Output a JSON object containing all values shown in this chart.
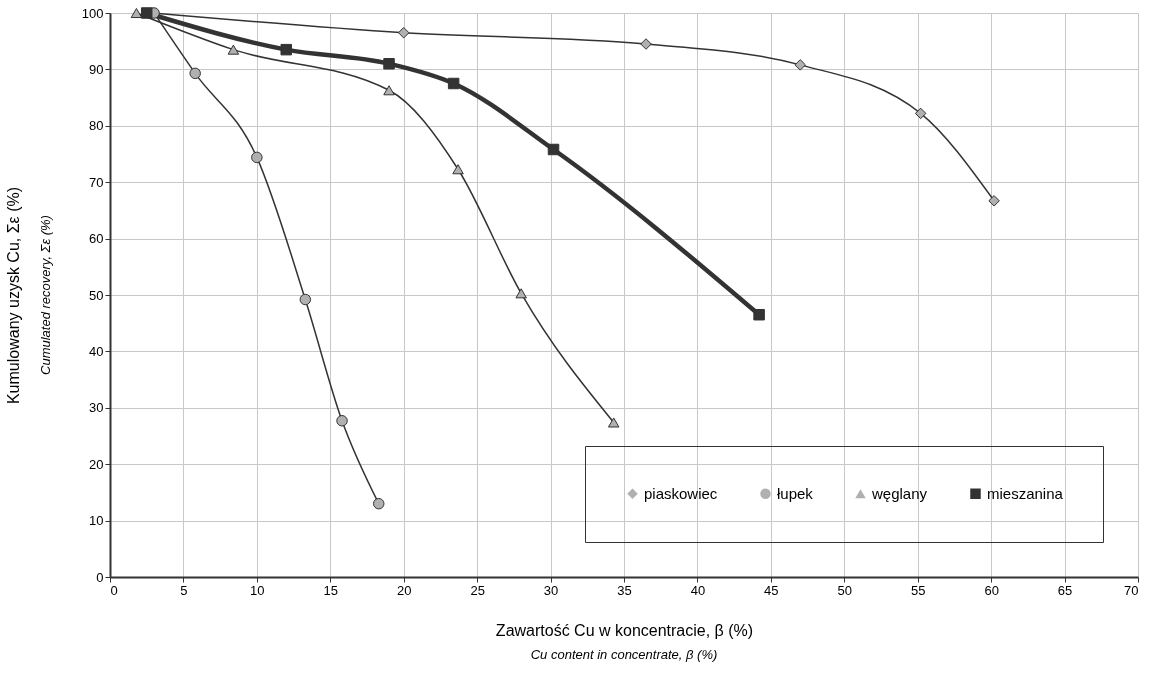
{
  "chart_data": {
    "type": "line",
    "xlabel": "Zawartość Cu w koncentracie, β (%)",
    "ylabel": "Kumulowany uzysk Cu, Σε (%)",
    "annotations": [
      "Cu content in concentrate, β (%)",
      "Cumulated recovery, Σε (%)"
    ],
    "xlim": [
      0,
      70
    ],
    "xticks": [
      0,
      5,
      10,
      15,
      20,
      25,
      30,
      35,
      40,
      45,
      50,
      55,
      60,
      65,
      70
    ],
    "ylim": [
      0,
      100
    ],
    "yticks": [
      0,
      10,
      20,
      30,
      40,
      50,
      60,
      70,
      80,
      90,
      100
    ],
    "grid": true,
    "legend": "bottom right",
    "series": [
      {
        "name": "piaskowiec",
        "color": "#b0b0b0",
        "marker": "diamond",
        "x": [
          2.9,
          20,
          36.5,
          47,
          55.2,
          60.2
        ],
        "values": [
          100,
          96.5,
          94.5,
          90.8,
          82.2,
          66.7
        ]
      },
      {
        "name": "łupek",
        "color": "#b0b0b0",
        "marker": "circle",
        "x": [
          3.0,
          5.8,
          10,
          13.3,
          15.8,
          18.3
        ],
        "values": [
          100,
          89.3,
          74.4,
          49.2,
          27.7,
          13
        ]
      },
      {
        "name": "węglany",
        "color": "#b0b0b0",
        "marker": "triangle",
        "x": [
          1.8,
          8.4,
          19,
          23.7,
          28,
          34.3
        ],
        "values": [
          100,
          93.5,
          86.3,
          72.3,
          50.3,
          27.4
        ]
      },
      {
        "name": "mieszanina",
        "color": "#333333",
        "marker": "square",
        "x": [
          2.5,
          12,
          19,
          23.4,
          30.2,
          44.2
        ],
        "values": [
          100,
          93.5,
          91,
          87.5,
          75.8,
          46.5
        ]
      }
    ]
  }
}
